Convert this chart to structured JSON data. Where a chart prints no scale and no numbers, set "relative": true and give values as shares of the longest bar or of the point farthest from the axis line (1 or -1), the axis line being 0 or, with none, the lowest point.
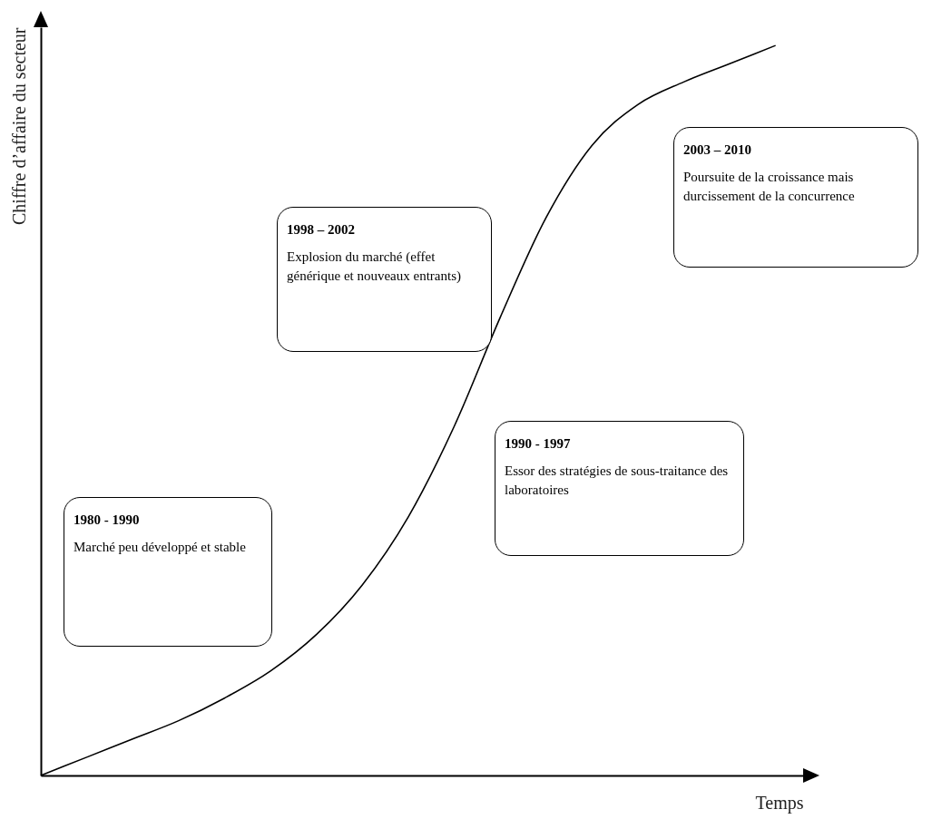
{
  "chart_data": {
    "type": "line",
    "relative": true,
    "xlabel": "Temps",
    "ylabel": "Chiffre d’affaire du secteur",
    "color": "#000000",
    "marker": "none",
    "grid": false,
    "categories": [
      null,
      null,
      null,
      null,
      null,
      null,
      null,
      null,
      null,
      null,
      null,
      null,
      null,
      null,
      null,
      null,
      null
    ],
    "values": [
      0,
      0.025,
      0.05,
      0.075,
      0.106,
      0.143,
      0.193,
      0.261,
      0.354,
      0.478,
      0.627,
      0.764,
      0.863,
      0.919,
      0.95,
      0.975,
      1
    ],
    "annotations": [
      "1980 - 1990",
      "Marché peu développé et stable",
      "1998 – 2002",
      "Explosion du marché (effet générique et nouveaux entrants)",
      "1990 - 1997",
      "Essor des stratégies de sous-traitance des laboratoires",
      "2003 – 2010",
      "Poursuite de la croissance mais durcissement de la concurrence"
    ]
  }
}
